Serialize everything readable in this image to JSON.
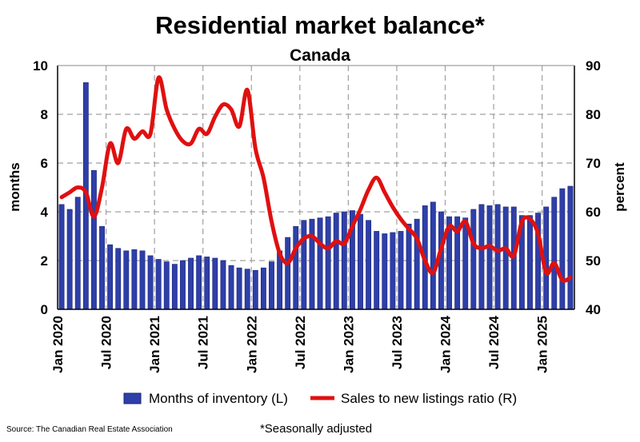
{
  "chart_data": {
    "type": "bar",
    "title": "Residential market balance*",
    "subtitle": "Canada",
    "ylabel_left": "months",
    "ylabel_right": "percent",
    "ylim_left": [
      0,
      10
    ],
    "ylim_right": [
      40,
      90
    ],
    "yticks_left": [
      "0",
      "2",
      "4",
      "6",
      "8",
      "10"
    ],
    "yticks_right": [
      "40",
      "50",
      "60",
      "70",
      "80",
      "90"
    ],
    "x_tick_labels": [
      "Jan 2020",
      "Jul 2020",
      "Jan 2021",
      "Jul 2021",
      "Jan 2022",
      "Jul 2022",
      "Jan 2023",
      "Jul 2023",
      "Jan 2024",
      "Jul 2024",
      "Jan 2025"
    ],
    "x_tick_months": [
      0,
      6,
      12,
      18,
      24,
      30,
      36,
      42,
      48,
      54,
      60
    ],
    "grid": true,
    "legend_position": "bottom",
    "colors": {
      "bars": "#2e3fa8",
      "bar_stroke": "#1a237e",
      "line": "#e01010",
      "grid": "#a0a0a0"
    },
    "series": [
      {
        "name": "Months of inventory (L)",
        "type": "bar",
        "axis": "left",
        "values": [
          4.3,
          4.1,
          4.6,
          9.3,
          5.7,
          3.4,
          2.65,
          2.5,
          2.4,
          2.45,
          2.4,
          2.2,
          2.05,
          1.95,
          1.85,
          2.0,
          2.1,
          2.2,
          2.15,
          2.1,
          2.0,
          1.8,
          1.7,
          1.65,
          1.6,
          1.7,
          1.95,
          2.4,
          2.95,
          3.4,
          3.65,
          3.7,
          3.75,
          3.8,
          3.95,
          4.0,
          4.05,
          3.9,
          3.65,
          3.2,
          3.1,
          3.15,
          3.2,
          3.5,
          3.7,
          4.25,
          4.4,
          4.0,
          3.8,
          3.8,
          3.75,
          4.1,
          4.3,
          4.25,
          4.3,
          4.2,
          4.2,
          3.85,
          3.85,
          3.95,
          4.2,
          4.6,
          4.95,
          5.05
        ]
      },
      {
        "name": "Sales to new listings ratio (R)",
        "type": "line",
        "axis": "right",
        "values": [
          63,
          64,
          65,
          64,
          59,
          65,
          74,
          70,
          77,
          75,
          76.5,
          76,
          87.5,
          81,
          77,
          74.5,
          74,
          77,
          76,
          79.5,
          82,
          81,
          77.5,
          85,
          73,
          67,
          58,
          51.5,
          49.5,
          52.5,
          54.5,
          55,
          53.5,
          52.5,
          54,
          53.5,
          57,
          60.5,
          64.5,
          67,
          64,
          61,
          58.5,
          56.5,
          54.5,
          50,
          47.5,
          52.5,
          57,
          56,
          58,
          53.5,
          52.5,
          53,
          52,
          52.5,
          51,
          58,
          58.5,
          55.5,
          47.5,
          49.5,
          46,
          46.5
        ]
      }
    ]
  },
  "legend": {
    "bar_label": "Months of inventory (L)",
    "line_label": "Sales to new listings ratio (R)"
  },
  "footer": {
    "source": "Source: The Canadian Real Estate Association",
    "note": "*Seasonally adjusted"
  }
}
